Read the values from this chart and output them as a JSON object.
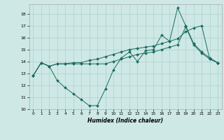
{
  "title": "",
  "xlabel": "Humidex (Indice chaleur)",
  "xlim": [
    -0.5,
    23.5
  ],
  "ylim": [
    10,
    18.8
  ],
  "yticks": [
    10,
    11,
    12,
    13,
    14,
    15,
    16,
    17,
    18
  ],
  "xticks": [
    0,
    1,
    2,
    3,
    4,
    5,
    6,
    7,
    8,
    9,
    10,
    11,
    12,
    13,
    14,
    15,
    16,
    17,
    18,
    19,
    20,
    21,
    22,
    23
  ],
  "bg_color": "#cde8e5",
  "grid_color": "#afd0cc",
  "line_color": "#1a6b60",
  "lines": [
    {
      "x": [
        0,
        1,
        2,
        3,
        4,
        5,
        6,
        7,
        8,
        9,
        10,
        11,
        12,
        13,
        14,
        15,
        16,
        17,
        18,
        19,
        20,
        21,
        22,
        23
      ],
      "y": [
        12.8,
        13.9,
        13.6,
        13.8,
        13.8,
        13.9,
        13.9,
        14.1,
        14.2,
        14.4,
        14.6,
        14.8,
        15.0,
        15.1,
        15.2,
        15.3,
        15.5,
        15.7,
        15.9,
        16.5,
        16.8,
        17.0,
        14.2,
        13.9
      ]
    },
    {
      "x": [
        0,
        1,
        2,
        3,
        4,
        5,
        6,
        7,
        8,
        9,
        10,
        11,
        12,
        13,
        14,
        15,
        16,
        17,
        18,
        19,
        20,
        21,
        22,
        23
      ],
      "y": [
        12.8,
        13.9,
        13.6,
        12.4,
        11.8,
        11.3,
        10.8,
        10.3,
        10.3,
        11.7,
        13.3,
        14.3,
        14.8,
        14.0,
        14.9,
        15.0,
        16.2,
        15.7,
        18.5,
        17.0,
        15.5,
        14.8,
        14.3,
        13.9
      ]
    },
    {
      "x": [
        0,
        1,
        2,
        3,
        4,
        5,
        6,
        7,
        8,
        9,
        10,
        11,
        12,
        13,
        14,
        15,
        16,
        17,
        18,
        19,
        20,
        21,
        22,
        23
      ],
      "y": [
        12.8,
        13.9,
        13.6,
        13.8,
        13.8,
        13.8,
        13.8,
        13.8,
        13.8,
        13.8,
        14.0,
        14.2,
        14.4,
        14.6,
        14.7,
        14.8,
        15.0,
        15.2,
        15.4,
        16.9,
        15.4,
        14.7,
        14.2,
        13.9
      ]
    }
  ]
}
